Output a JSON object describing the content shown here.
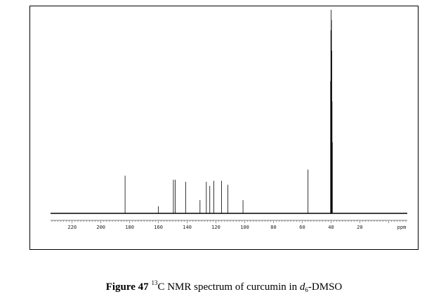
{
  "caption": {
    "figure_label": "Figure 47",
    "isotope_mass": "13",
    "text_before_solvent": "C NMR spectrum of curcumin in ",
    "solvent_prefix": "d",
    "solvent_subscript": "6",
    "solvent_suffix": "-DMSO"
  },
  "chart_data": {
    "type": "line",
    "title": "",
    "xlabel": "ppm",
    "ylabel": "",
    "xlim": [
      235,
      -13
    ],
    "x_reversed": true,
    "ylim": [
      0,
      1
    ],
    "grid": false,
    "x_ticks": [
      220,
      200,
      180,
      160,
      140,
      120,
      100,
      80,
      60,
      40,
      20
    ],
    "x_tick_labels": [
      "220",
      "200",
      "180",
      "160",
      "140",
      "120",
      "100",
      "80",
      "60",
      "40",
      "20"
    ],
    "x_unit_label": "ppm",
    "series": [
      {
        "peaks": [
          {
            "ppm": 183.2,
            "intensity": 0.185
          },
          {
            "ppm": 160.0,
            "intensity": 0.035
          },
          {
            "ppm": 149.6,
            "intensity": 0.165
          },
          {
            "ppm": 148.3,
            "intensity": 0.165
          },
          {
            "ppm": 141.1,
            "intensity": 0.155
          },
          {
            "ppm": 131.1,
            "intensity": 0.065
          },
          {
            "ppm": 126.7,
            "intensity": 0.155
          },
          {
            "ppm": 124.3,
            "intensity": 0.135
          },
          {
            "ppm": 121.5,
            "intensity": 0.16
          },
          {
            "ppm": 116.1,
            "intensity": 0.16
          },
          {
            "ppm": 111.7,
            "intensity": 0.14
          },
          {
            "ppm": 101.2,
            "intensity": 0.065
          },
          {
            "ppm": 56.0,
            "intensity": 0.215
          },
          {
            "ppm": 40.3,
            "intensity": 0.65
          },
          {
            "ppm": 40.1,
            "intensity": 0.9
          },
          {
            "ppm": 39.9,
            "intensity": 1.0
          },
          {
            "ppm": 39.7,
            "intensity": 0.95
          },
          {
            "ppm": 39.5,
            "intensity": 0.8
          },
          {
            "ppm": 39.3,
            "intensity": 0.55
          },
          {
            "ppm": 39.1,
            "intensity": 0.35
          }
        ]
      }
    ]
  }
}
